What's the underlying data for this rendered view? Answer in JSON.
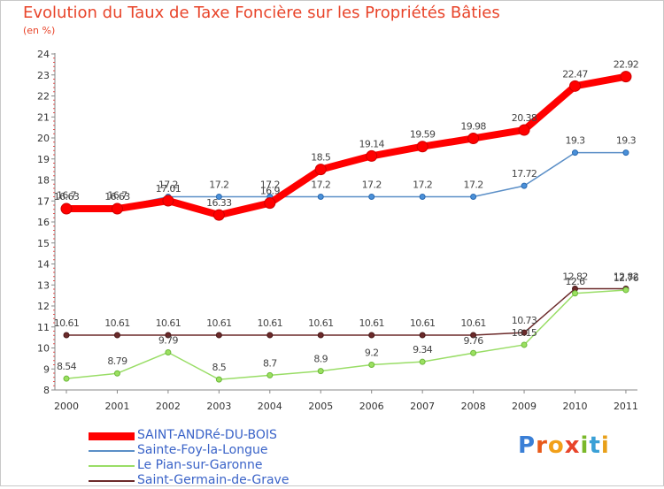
{
  "chart_data": {
    "type": "line",
    "title": "Evolution du Taux de Taxe Foncière sur les Propriétés Bâties",
    "subtitle": "(en %)",
    "x": [
      "2000",
      "2001",
      "2002",
      "2003",
      "2004",
      "2005",
      "2006",
      "2007",
      "2008",
      "2009",
      "2010",
      "2011"
    ],
    "ylim": [
      8,
      24
    ],
    "yticks": [
      8,
      9,
      10,
      11,
      12,
      13,
      14,
      15,
      16,
      17,
      18,
      19,
      20,
      21,
      22,
      23,
      24
    ],
    "grid": false,
    "legend_position": "bottom-left",
    "series": [
      {
        "name": "SAINT-ANDRé-DU-BOIS",
        "color": "#ff0000",
        "values": [
          16.63,
          16.63,
          17.01,
          16.33,
          16.9,
          18.5,
          19.14,
          19.59,
          19.98,
          20.38,
          22.47,
          22.92
        ],
        "labels": [
          "16.63",
          "16.63",
          "17.01",
          "16.33",
          "16.9",
          "18.5",
          "19.14",
          "19.59",
          "19.98",
          "20.38",
          "22.47",
          "22.92"
        ]
      },
      {
        "name": "Sainte-Foy-la-Longue",
        "color": "#5b8fc7",
        "values": [
          16.7,
          16.7,
          17.2,
          17.2,
          17.2,
          17.2,
          17.2,
          17.2,
          17.2,
          17.72,
          19.3,
          19.3
        ],
        "labels": [
          "16.7",
          "16.7",
          "17.2",
          "17.2",
          "17.2",
          "17.2",
          "17.2",
          "17.2",
          "17.2",
          "17.72",
          "19.3",
          "19.3"
        ]
      },
      {
        "name": "Le Pian-sur-Garonne",
        "color": "#99dd66",
        "values": [
          8.54,
          8.79,
          9.79,
          8.5,
          8.7,
          8.9,
          9.2,
          9.34,
          9.76,
          10.15,
          12.6,
          12.76
        ],
        "labels": [
          "8.54",
          "8.79",
          "9.79",
          "8.5",
          "8.7",
          "8.9",
          "9.2",
          "9.34",
          "9.76",
          "10.15",
          "12.6",
          "12.76"
        ]
      },
      {
        "name": "Saint-Germain-de-Grave",
        "color": "#6b2a2a",
        "values": [
          10.61,
          10.61,
          10.61,
          10.61,
          10.61,
          10.61,
          10.61,
          10.61,
          10.61,
          10.73,
          12.82,
          12.82
        ],
        "labels": [
          "10.61",
          "10.61",
          "10.61",
          "10.61",
          "10.61",
          "10.61",
          "10.61",
          "10.61",
          "10.61",
          "10.73",
          "12.82",
          "12.82"
        ]
      }
    ]
  },
  "logo": {
    "text": "Proxiti"
  }
}
